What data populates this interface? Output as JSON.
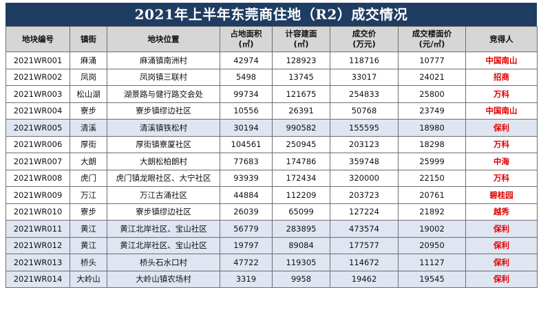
{
  "title": "2021年上半年东莞商住地（R2）成交情况",
  "headers": [
    "地块编号",
    "镇街",
    "地块位置",
    "占地面积\n(㎡)",
    "计容建面\n(㎡)",
    "成交价\n(万元)",
    "成交楼面价\n(元/㎡)",
    "竞得人"
  ],
  "rows": [
    {
      "id": "2021WR001",
      "town": "麻涌",
      "loc": "麻涌镇南洲村",
      "area": "42974",
      "gfa": "128923",
      "price": "118716",
      "unit": "10777",
      "winner": "中国南山",
      "shade": false
    },
    {
      "id": "2021WR002",
      "town": "凤岗",
      "loc": "凤岗镇三联村",
      "area": "5498",
      "gfa": "13745",
      "price": "33017",
      "unit": "24021",
      "winner": "招商",
      "shade": false
    },
    {
      "id": "2021WR003",
      "town": "松山湖",
      "loc": "湖景路与健行路交会处",
      "area": "99734",
      "gfa": "121675",
      "price": "254833",
      "unit": "25800",
      "winner": "万科",
      "shade": false
    },
    {
      "id": "2021WR004",
      "town": "寮步",
      "loc": "寮步镇缪边社区",
      "area": "10556",
      "gfa": "26391",
      "price": "50768",
      "unit": "23749",
      "winner": "中国南山",
      "shade": false
    },
    {
      "id": "2021WR005",
      "town": "清溪",
      "loc": "清溪镇铁松村",
      "area": "30194",
      "gfa": "990582",
      "price": "155595",
      "unit": "18980",
      "winner": "保利",
      "shade": true
    },
    {
      "id": "2021WR006",
      "town": "厚街",
      "loc": "厚街镇寮厦社区",
      "area": "104561",
      "gfa": "250945",
      "price": "203123",
      "unit": "18298",
      "winner": "万科",
      "shade": false
    },
    {
      "id": "2021WR007",
      "town": "大朗",
      "loc": "大朗松柏朗村",
      "area": "77683",
      "gfa": "174786",
      "price": "359748",
      "unit": "25999",
      "winner": "中海",
      "shade": false
    },
    {
      "id": "2021WR008",
      "town": "虎门",
      "loc": "虎门镇龙眼社区、大宁社区",
      "area": "93939",
      "gfa": "172434",
      "price": "320000",
      "unit": "22150",
      "winner": "万科",
      "shade": false
    },
    {
      "id": "2021WR009",
      "town": "万江",
      "loc": "万江古涌社区",
      "area": "44884",
      "gfa": "112209",
      "price": "203723",
      "unit": "20761",
      "winner": "碧桂园",
      "shade": false
    },
    {
      "id": "2021WR010",
      "town": "寮步",
      "loc": "寮步镇缪边社区",
      "area": "26039",
      "gfa": "65099",
      "price": "127224",
      "unit": "21892",
      "winner": "越秀",
      "shade": false
    },
    {
      "id": "2021WR011",
      "town": "黄江",
      "loc": "黄江北岸社区、宝山社区",
      "area": "56779",
      "gfa": "283895",
      "price": "473574",
      "unit": "19002",
      "winner": "保利",
      "shade": true
    },
    {
      "id": "2021WR012",
      "town": "黄江",
      "loc": "黄江北岸社区、宝山社区",
      "area": "19797",
      "gfa": "89084",
      "price": "177577",
      "unit": "20950",
      "winner": "保利",
      "shade": true
    },
    {
      "id": "2021WR013",
      "town": "桥头",
      "loc": "桥头石水口村",
      "area": "47722",
      "gfa": "119305",
      "price": "114672",
      "unit": "11127",
      "winner": "保利",
      "shade": true
    },
    {
      "id": "2021WR014",
      "town": "大岭山",
      "loc": "大岭山镇农场村",
      "area": "3319",
      "gfa": "9958",
      "price": "19462",
      "unit": "19545",
      "winner": "保利",
      "shade": true
    }
  ]
}
